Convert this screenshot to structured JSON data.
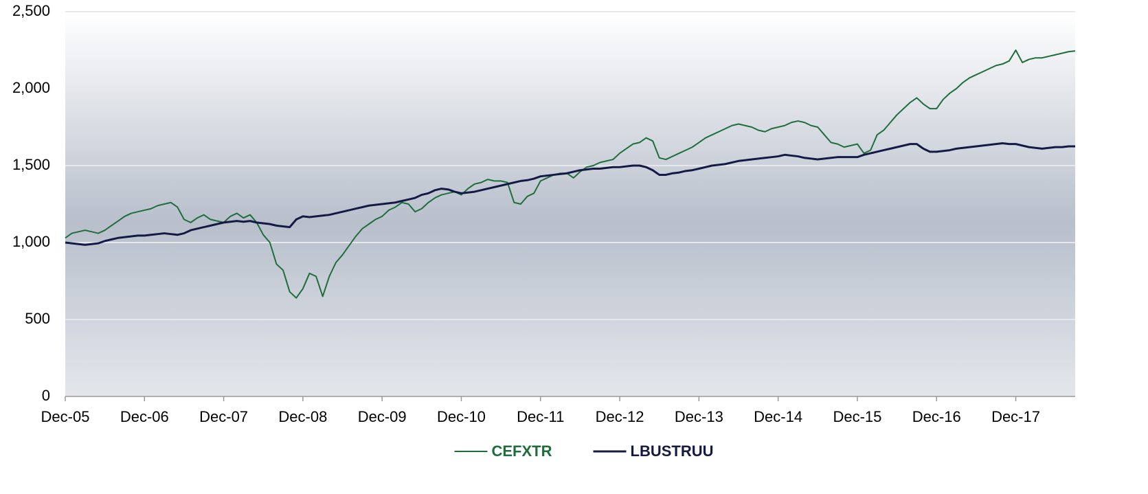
{
  "chart_data": {
    "type": "line",
    "x": [
      "Dec-05",
      "Jan-06",
      "Feb-06",
      "Mar-06",
      "Apr-06",
      "May-06",
      "Jun-06",
      "Jul-06",
      "Aug-06",
      "Sep-06",
      "Oct-06",
      "Nov-06",
      "Dec-06",
      "Jan-07",
      "Feb-07",
      "Mar-07",
      "Apr-07",
      "May-07",
      "Jun-07",
      "Jul-07",
      "Aug-07",
      "Sep-07",
      "Oct-07",
      "Nov-07",
      "Dec-07",
      "Jan-08",
      "Feb-08",
      "Mar-08",
      "Apr-08",
      "May-08",
      "Jun-08",
      "Jul-08",
      "Aug-08",
      "Sep-08",
      "Oct-08",
      "Nov-08",
      "Dec-08",
      "Jan-09",
      "Feb-09",
      "Mar-09",
      "Apr-09",
      "May-09",
      "Jun-09",
      "Jul-09",
      "Aug-09",
      "Sep-09",
      "Oct-09",
      "Nov-09",
      "Dec-09",
      "Jan-10",
      "Feb-10",
      "Mar-10",
      "Apr-10",
      "May-10",
      "Jun-10",
      "Jul-10",
      "Aug-10",
      "Sep-10",
      "Oct-10",
      "Nov-10",
      "Dec-10",
      "Jan-11",
      "Feb-11",
      "Mar-11",
      "Apr-11",
      "May-11",
      "Jun-11",
      "Jul-11",
      "Aug-11",
      "Sep-11",
      "Oct-11",
      "Nov-11",
      "Dec-11",
      "Jan-12",
      "Feb-12",
      "Mar-12",
      "Apr-12",
      "May-12",
      "Jun-12",
      "Jul-12",
      "Aug-12",
      "Sep-12",
      "Oct-12",
      "Nov-12",
      "Dec-12",
      "Jan-13",
      "Feb-13",
      "Mar-13",
      "Apr-13",
      "May-13",
      "Jun-13",
      "Jul-13",
      "Aug-13",
      "Sep-13",
      "Oct-13",
      "Nov-13",
      "Dec-13",
      "Jan-14",
      "Feb-14",
      "Mar-14",
      "Apr-14",
      "May-14",
      "Jun-14",
      "Jul-14",
      "Aug-14",
      "Sep-14",
      "Oct-14",
      "Nov-14",
      "Dec-14",
      "Jan-15",
      "Feb-15",
      "Mar-15",
      "Apr-15",
      "May-15",
      "Jun-15",
      "Jul-15",
      "Aug-15",
      "Sep-15",
      "Oct-15",
      "Nov-15",
      "Dec-15",
      "Jan-16",
      "Feb-16",
      "Mar-16",
      "Apr-16",
      "May-16",
      "Jun-16",
      "Jul-16",
      "Aug-16",
      "Sep-16",
      "Oct-16",
      "Nov-16",
      "Dec-16",
      "Jan-17",
      "Feb-17",
      "Mar-17",
      "Apr-17",
      "May-17",
      "Jun-17",
      "Jul-17",
      "Aug-17",
      "Sep-17",
      "Oct-17",
      "Nov-17",
      "Dec-17",
      "Jan-18",
      "Feb-18",
      "Mar-18",
      "Apr-18",
      "May-18",
      "Jun-18",
      "Jul-18",
      "Aug-18",
      "Sep-18"
    ],
    "series": [
      {
        "name": "CEFXTR",
        "color": "#1e6e3c",
        "values": [
          1030,
          1060,
          1070,
          1080,
          1070,
          1060,
          1080,
          1110,
          1140,
          1170,
          1190,
          1200,
          1210,
          1220,
          1240,
          1250,
          1260,
          1230,
          1150,
          1130,
          1160,
          1180,
          1150,
          1140,
          1130,
          1170,
          1190,
          1160,
          1180,
          1130,
          1050,
          1000,
          860,
          820,
          680,
          640,
          700,
          800,
          780,
          650,
          780,
          870,
          920,
          980,
          1040,
          1090,
          1120,
          1150,
          1170,
          1210,
          1230,
          1260,
          1250,
          1200,
          1220,
          1260,
          1290,
          1310,
          1320,
          1330,
          1310,
          1350,
          1380,
          1390,
          1410,
          1400,
          1400,
          1390,
          1260,
          1250,
          1300,
          1320,
          1400,
          1420,
          1440,
          1450,
          1450,
          1420,
          1460,
          1490,
          1500,
          1520,
          1530,
          1540,
          1580,
          1610,
          1640,
          1650,
          1680,
          1660,
          1550,
          1540,
          1560,
          1580,
          1600,
          1620,
          1650,
          1680,
          1700,
          1720,
          1740,
          1760,
          1770,
          1760,
          1750,
          1730,
          1720,
          1740,
          1750,
          1760,
          1780,
          1790,
          1780,
          1760,
          1750,
          1700,
          1650,
          1640,
          1620,
          1630,
          1640,
          1580,
          1600,
          1700,
          1730,
          1780,
          1830,
          1870,
          1910,
          1940,
          1900,
          1870,
          1870,
          1930,
          1970,
          2000,
          2040,
          2070,
          2090,
          2110,
          2130,
          2150,
          2160,
          2180,
          2250,
          2170,
          2190,
          2200,
          2200,
          2210,
          2220,
          2230,
          2240,
          2245
        ]
      },
      {
        "name": "LBUSTRUU",
        "color": "#141a45",
        "values": [
          1000,
          995,
          990,
          985,
          990,
          995,
          1010,
          1020,
          1030,
          1035,
          1040,
          1045,
          1045,
          1050,
          1055,
          1060,
          1055,
          1050,
          1060,
          1080,
          1090,
          1100,
          1110,
          1120,
          1130,
          1135,
          1140,
          1135,
          1140,
          1130,
          1125,
          1120,
          1110,
          1105,
          1100,
          1150,
          1170,
          1165,
          1170,
          1175,
          1180,
          1190,
          1200,
          1210,
          1220,
          1230,
          1240,
          1245,
          1250,
          1255,
          1260,
          1270,
          1280,
          1290,
          1310,
          1320,
          1340,
          1350,
          1345,
          1330,
          1320,
          1325,
          1330,
          1340,
          1350,
          1360,
          1370,
          1380,
          1390,
          1400,
          1405,
          1415,
          1430,
          1435,
          1440,
          1445,
          1450,
          1460,
          1470,
          1475,
          1480,
          1480,
          1485,
          1490,
          1490,
          1495,
          1500,
          1500,
          1490,
          1470,
          1440,
          1440,
          1450,
          1455,
          1465,
          1470,
          1480,
          1490,
          1500,
          1505,
          1510,
          1520,
          1530,
          1535,
          1540,
          1545,
          1550,
          1555,
          1560,
          1570,
          1565,
          1560,
          1550,
          1545,
          1540,
          1545,
          1550,
          1555,
          1555,
          1555,
          1555,
          1570,
          1580,
          1590,
          1600,
          1610,
          1620,
          1630,
          1640,
          1640,
          1610,
          1590,
          1590,
          1595,
          1600,
          1610,
          1615,
          1620,
          1625,
          1630,
          1635,
          1640,
          1645,
          1640,
          1640,
          1630,
          1620,
          1615,
          1610,
          1615,
          1620,
          1620,
          1625,
          1625
        ]
      }
    ],
    "xticks": [
      "Dec-05",
      "Dec-06",
      "Dec-07",
      "Dec-08",
      "Dec-09",
      "Dec-10",
      "Dec-11",
      "Dec-12",
      "Dec-13",
      "Dec-14",
      "Dec-15",
      "Dec-16",
      "Dec-17"
    ],
    "ylim": [
      0,
      2500
    ],
    "yticks": [
      0,
      500,
      {
        "value": 1000,
        "label": "1,000"
      },
      {
        "value": 1500,
        "label": "1,500"
      },
      {
        "value": 2000,
        "label": "2,000"
      },
      {
        "value": 2500,
        "label": "2,500"
      }
    ],
    "grid": true,
    "legend": "bottom"
  }
}
